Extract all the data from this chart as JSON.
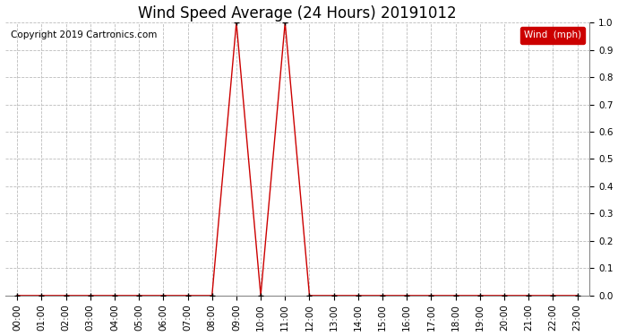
{
  "title": "Wind Speed Average (24 Hours) 20191012",
  "copyright_text": "Copyright 2019 Cartronics.com",
  "legend_label": "Wind  (mph)",
  "legend_bg": "#cc0000",
  "legend_fg": "#ffffff",
  "line_color": "#cc0000",
  "marker_color": "#000000",
  "background_color": "#ffffff",
  "grid_color": "#bbbbbb",
  "ylim": [
    0.0,
    1.0
  ],
  "yticks": [
    0.0,
    0.1,
    0.2,
    0.3,
    0.4,
    0.5,
    0.6,
    0.7,
    0.8,
    0.9,
    1.0
  ],
  "xlim": [
    0,
    23
  ],
  "xtick_labels": [
    "00:00",
    "01:00",
    "02:00",
    "03:00",
    "04:00",
    "05:00",
    "06:00",
    "07:00",
    "08:00",
    "09:00",
    "10:00",
    "11:00",
    "12:00",
    "13:00",
    "14:00",
    "15:00",
    "16:00",
    "17:00",
    "18:00",
    "19:00",
    "20:00",
    "21:00",
    "22:00",
    "23:00"
  ],
  "x_values": [
    0,
    1,
    2,
    3,
    4,
    5,
    6,
    7,
    8,
    9,
    10,
    11,
    12,
    13,
    14,
    15,
    16,
    17,
    18,
    19,
    20,
    21,
    22,
    23
  ],
  "y_values": [
    0.0,
    0.0,
    0.0,
    0.0,
    0.0,
    0.0,
    0.0,
    0.0,
    0.0,
    1.0,
    0.0,
    1.0,
    0.0,
    0.0,
    0.0,
    0.0,
    0.0,
    0.0,
    0.0,
    0.0,
    0.0,
    0.0,
    0.0,
    0.0
  ],
  "title_fontsize": 12,
  "tick_fontsize": 7.5,
  "copyright_fontsize": 7.5
}
